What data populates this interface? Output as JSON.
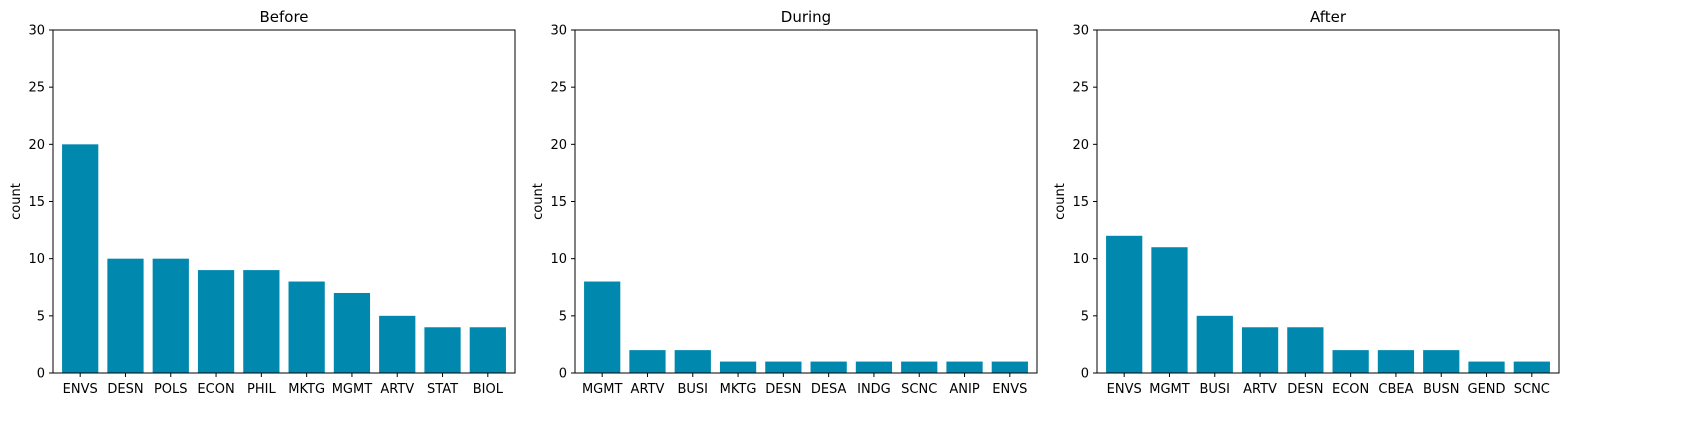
{
  "colors": {
    "bar": "#0088AE",
    "axis": "#000000",
    "background": "#ffffff"
  },
  "chart_data": [
    {
      "type": "bar",
      "title": "Before",
      "ylabel": "count",
      "xlabel": "",
      "ylim": [
        0,
        30
      ],
      "yticks": [
        0,
        5,
        10,
        15,
        20,
        25,
        30
      ],
      "grid": false,
      "categories": [
        "ENVS",
        "DESN",
        "POLS",
        "ECON",
        "PHIL",
        "MKTG",
        "MGMT",
        "ARTV",
        "STAT",
        "BIOL"
      ],
      "values": [
        20,
        10,
        10,
        9,
        9,
        8,
        7,
        5,
        4,
        4
      ]
    },
    {
      "type": "bar",
      "title": "During",
      "ylabel": "count",
      "xlabel": "",
      "ylim": [
        0,
        30
      ],
      "yticks": [
        0,
        5,
        10,
        15,
        20,
        25,
        30
      ],
      "grid": false,
      "categories": [
        "MGMT",
        "ARTV",
        "BUSI",
        "MKTG",
        "DESN",
        "DESA",
        "INDG",
        "SCNC",
        "ANIP",
        "ENVS"
      ],
      "values": [
        8,
        2,
        2,
        1,
        1,
        1,
        1,
        1,
        1,
        1
      ]
    },
    {
      "type": "bar",
      "title": "After",
      "ylabel": "count",
      "xlabel": "",
      "ylim": [
        0,
        30
      ],
      "yticks": [
        0,
        5,
        10,
        15,
        20,
        25,
        30
      ],
      "grid": false,
      "categories": [
        "ENVS",
        "MGMT",
        "BUSI",
        "ARTV",
        "DESN",
        "ECON",
        "CBEA",
        "BUSN",
        "GEND",
        "SCNC"
      ],
      "values": [
        12,
        11,
        5,
        4,
        4,
        2,
        2,
        2,
        1,
        1
      ]
    }
  ]
}
